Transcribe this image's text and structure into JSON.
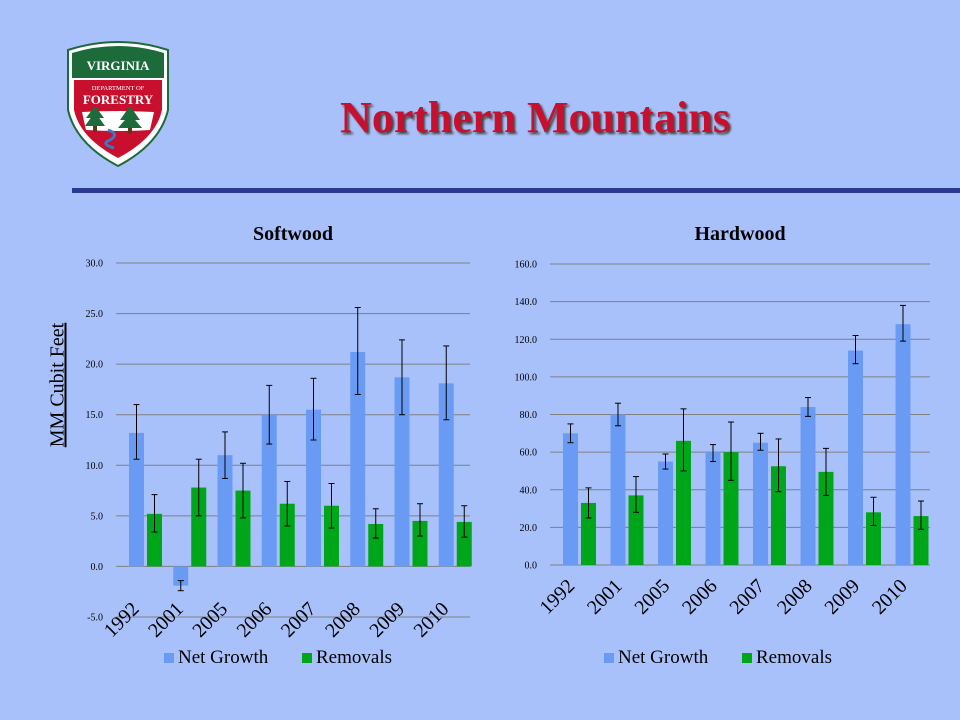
{
  "slide": {
    "title": "Northern Mountains",
    "logo_top": "VIRGINIA",
    "logo_mid": "DEPARTMENT OF",
    "logo_main": "FORESTRY"
  },
  "colors": {
    "background": "#a9c1fb",
    "title": "#c8102e",
    "rule": "#2b3990",
    "net_growth": "#6a9bf4",
    "removals": "#00a619"
  },
  "chart_data": [
    {
      "type": "bar",
      "title": "Softwood",
      "ylabel": "MM Cubit Feet",
      "categories": [
        "1992",
        "2001",
        "2005",
        "2006",
        "2007",
        "2008",
        "2009",
        "2010"
      ],
      "ylim": [
        -5.0,
        30.0
      ],
      "yticks": [
        "-5.0",
        "0.0",
        "5.0",
        "10.0",
        "15.0",
        "20.0",
        "25.0",
        "30.0"
      ],
      "grid": true,
      "legend": "bottom",
      "series": [
        {
          "name": "Net Growth",
          "values": [
            13.2,
            -1.9,
            11.0,
            15.0,
            15.5,
            21.2,
            18.7,
            18.1
          ],
          "err_low": [
            10.6,
            -2.4,
            8.7,
            12.1,
            12.5,
            17.0,
            15.0,
            14.5
          ],
          "err_high": [
            16.0,
            -1.4,
            13.3,
            17.9,
            18.6,
            25.6,
            22.4,
            21.8
          ]
        },
        {
          "name": "Removals",
          "values": [
            5.2,
            7.8,
            7.5,
            6.2,
            6.0,
            4.2,
            4.5,
            4.4
          ],
          "err_low": [
            3.4,
            5.0,
            4.8,
            4.0,
            3.8,
            2.8,
            3.0,
            2.9
          ],
          "err_high": [
            7.1,
            10.6,
            10.2,
            8.4,
            8.2,
            5.7,
            6.2,
            6.0
          ]
        }
      ]
    },
    {
      "type": "bar",
      "title": "Hardwood",
      "categories": [
        "1992",
        "2001",
        "2005",
        "2006",
        "2007",
        "2008",
        "2009",
        "2010"
      ],
      "ylim": [
        0.0,
        160.0
      ],
      "yticks": [
        "0.0",
        "20.0",
        "40.0",
        "60.0",
        "80.0",
        "100.0",
        "120.0",
        "140.0",
        "160.0"
      ],
      "grid": true,
      "legend": "bottom",
      "series": [
        {
          "name": "Net Growth",
          "values": [
            70.0,
            80.0,
            55.0,
            60.0,
            65.0,
            84.0,
            114.0,
            128.0
          ],
          "err_low": [
            65.0,
            74.0,
            51.0,
            55.0,
            61.0,
            79.0,
            107.0,
            119.0
          ],
          "err_high": [
            75.0,
            86.0,
            59.0,
            64.0,
            70.0,
            89.0,
            122.0,
            138.0
          ]
        },
        {
          "name": "Removals",
          "values": [
            33.0,
            37.0,
            66.0,
            60.0,
            52.5,
            49.5,
            28.0,
            26.0
          ],
          "err_low": [
            25.0,
            28.0,
            50.0,
            45.0,
            39.0,
            37.0,
            21.0,
            19.0
          ],
          "err_high": [
            41.0,
            47.0,
            83.0,
            76.0,
            67.0,
            62.0,
            36.0,
            34.0
          ]
        }
      ]
    }
  ]
}
